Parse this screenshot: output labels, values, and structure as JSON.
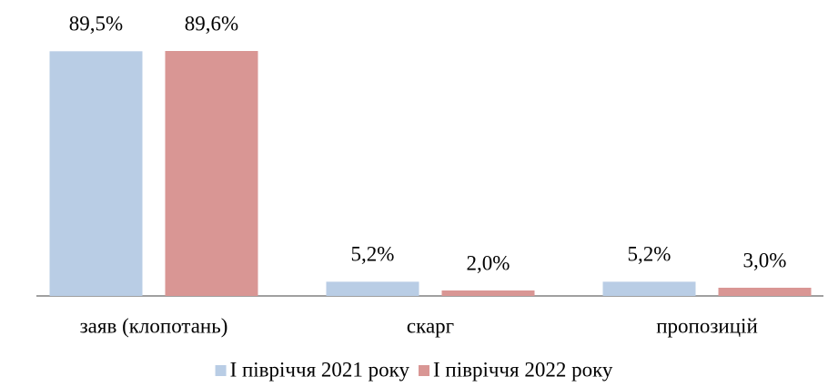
{
  "chart_data": {
    "type": "bar",
    "categories": [
      "заяв (клопотань)",
      "скарг",
      "пропозицій"
    ],
    "series": [
      {
        "name": "І півріччя 2021 року",
        "color": "#b9cde5",
        "values": [
          89.5,
          5.2,
          5.2
        ],
        "value_labels": [
          "89,5%",
          "5,2%",
          "5,2%"
        ]
      },
      {
        "name": "І півріччя 2022 року",
        "color": "#d99694",
        "values": [
          89.6,
          2.0,
          3.0
        ],
        "value_labels": [
          "89,6%",
          "2,0%",
          "3,0%"
        ]
      }
    ],
    "legend": "bottom"
  }
}
